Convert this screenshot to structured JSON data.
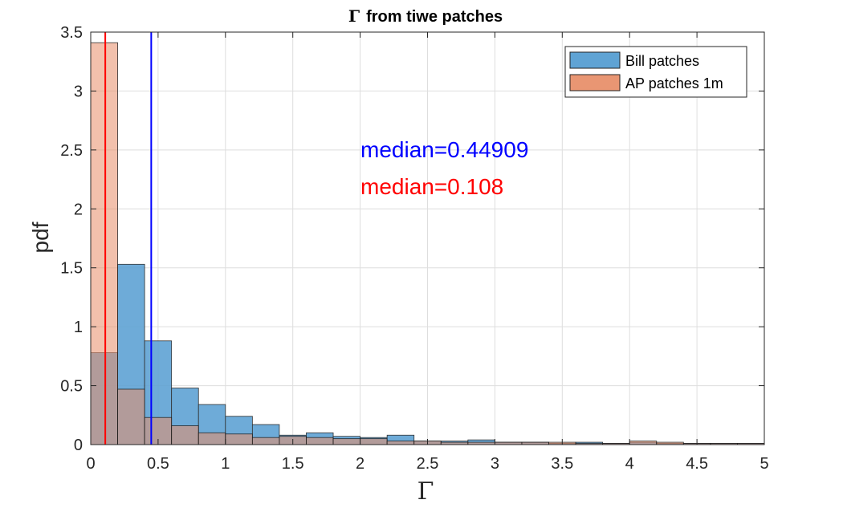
{
  "chart_data": {
    "type": "bar",
    "title_symbol": "Γ",
    "title_text": "from tiwe patches",
    "xlabel": "Γ",
    "ylabel": "pdf",
    "xlim": [
      0,
      5
    ],
    "ylim": [
      0,
      3.5
    ],
    "xticks": [
      "0",
      "0.5",
      "1",
      "1.5",
      "2",
      "2.5",
      "3",
      "3.5",
      "4",
      "4.5",
      "5"
    ],
    "yticks": [
      "0",
      "0.5",
      "1",
      "1.5",
      "2",
      "2.5",
      "3",
      "3.5"
    ],
    "grid": true,
    "legend_position": "top-right",
    "bin_width": 0.2,
    "bin_start": 0,
    "series": [
      {
        "name": "Bill patches",
        "color": "#5fa3d4",
        "values": [
          0.78,
          1.53,
          0.88,
          0.48,
          0.34,
          0.24,
          0.17,
          0.08,
          0.1,
          0.07,
          0.06,
          0.08,
          0.03,
          0.03,
          0.04,
          0.02,
          0.02,
          0.01,
          0.02,
          0.01,
          0.02,
          0.01,
          0.01,
          0.01,
          0.01
        ]
      },
      {
        "name": "AP patches 1m",
        "color": "#e8906b",
        "values": [
          3.41,
          0.47,
          0.23,
          0.16,
          0.1,
          0.09,
          0.06,
          0.07,
          0.06,
          0.05,
          0.05,
          0.03,
          0.03,
          0.02,
          0.02,
          0.02,
          0.02,
          0.02,
          0.01,
          0.01,
          0.03,
          0.02,
          0.01,
          0.01,
          0.01
        ]
      }
    ],
    "medians": [
      {
        "label": "median=0.44909",
        "value": 0.44909,
        "color": "#0000ff"
      },
      {
        "label": "median=0.108",
        "value": 0.108,
        "color": "#ff0000"
      }
    ]
  }
}
